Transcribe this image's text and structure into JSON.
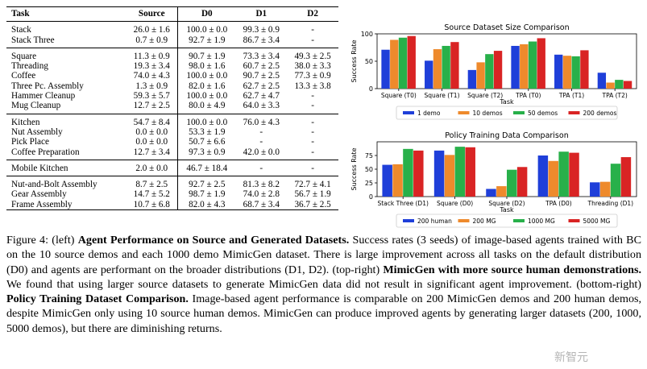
{
  "table": {
    "headers": [
      "Task",
      "Source",
      "D0",
      "D1",
      "D2"
    ],
    "groups": [
      [
        [
          "Stack",
          "26.0 ± 1.6",
          "100.0 ± 0.0",
          "99.3 ± 0.9",
          "-"
        ],
        [
          "Stack Three",
          "0.7 ± 0.9",
          "92.7 ± 1.9",
          "86.7 ± 3.4",
          "-"
        ]
      ],
      [
        [
          "Square",
          "11.3 ± 0.9",
          "90.7 ± 1.9",
          "73.3 ± 3.4",
          "49.3 ± 2.5"
        ],
        [
          "Threading",
          "19.3 ± 3.4",
          "98.0 ± 1.6",
          "60.7 ± 2.5",
          "38.0 ± 3.3"
        ],
        [
          "Coffee",
          "74.0 ± 4.3",
          "100.0 ± 0.0",
          "90.7 ± 2.5",
          "77.3 ± 0.9"
        ],
        [
          "Three Pc. Assembly",
          "1.3 ± 0.9",
          "82.0 ± 1.6",
          "62.7 ± 2.5",
          "13.3 ± 3.8"
        ],
        [
          "Hammer Cleanup",
          "59.3 ± 5.7",
          "100.0 ± 0.0",
          "62.7 ± 4.7",
          "-"
        ],
        [
          "Mug Cleanup",
          "12.7 ± 2.5",
          "80.0 ± 4.9",
          "64.0 ± 3.3",
          "-"
        ]
      ],
      [
        [
          "Kitchen",
          "54.7 ± 8.4",
          "100.0 ± 0.0",
          "76.0 ± 4.3",
          "-"
        ],
        [
          "Nut Assembly",
          "0.0 ± 0.0",
          "53.3 ± 1.9",
          "-",
          "-"
        ],
        [
          "Pick Place",
          "0.0 ± 0.0",
          "50.7 ± 6.6",
          "-",
          "-"
        ],
        [
          "Coffee Preparation",
          "12.7 ± 3.4",
          "97.3 ± 0.9",
          "42.0 ± 0.0",
          "-"
        ]
      ],
      [
        [
          "Mobile Kitchen",
          "2.0 ± 0.0",
          "46.7 ± 18.4",
          "-",
          "-"
        ]
      ],
      [
        [
          "Nut-and-Bolt Assembly",
          "8.7 ± 2.5",
          "92.7 ± 2.5",
          "81.3 ± 8.2",
          "72.7 ± 4.1"
        ],
        [
          "Gear Assembly",
          "14.7 ± 5.2",
          "98.7 ± 1.9",
          "74.0 ± 2.8",
          "56.7 ± 1.9"
        ],
        [
          "Frame Assembly",
          "10.7 ± 6.8",
          "82.0 ± 4.3",
          "68.7 ± 3.4",
          "36.7 ± 2.5"
        ]
      ]
    ]
  },
  "chart_data": [
    {
      "type": "bar",
      "title": "Source Dataset Size Comparison",
      "xlabel": "Task",
      "ylabel": "Success Rate",
      "ylim": [
        0,
        100
      ],
      "yticks": [
        0,
        50,
        100
      ],
      "grid": false,
      "legend_placement": "bottom",
      "categories": [
        "Square (T0)",
        "Square (T1)",
        "Square (T2)",
        "TPA (T0)",
        "TPA (T1)",
        "TPA (T2)"
      ],
      "series": [
        {
          "name": "1 demo",
          "color": "#1f3fd9",
          "values": [
            71,
            51,
            34,
            78,
            62,
            29
          ]
        },
        {
          "name": "10 demos",
          "color": "#ee8a2c",
          "values": [
            89,
            72,
            48,
            81,
            60,
            11
          ]
        },
        {
          "name": "50 demos",
          "color": "#28b04a",
          "values": [
            93,
            78,
            63,
            86,
            59,
            16
          ]
        },
        {
          "name": "200 demos",
          "color": "#d92424",
          "values": [
            96,
            85,
            69,
            92,
            70,
            14
          ]
        }
      ]
    },
    {
      "type": "bar",
      "title": "Policy Training Data Comparison",
      "xlabel": "Task",
      "ylabel": "Success Rate",
      "ylim": [
        0,
        100
      ],
      "yticks": [
        0,
        25,
        50,
        75
      ],
      "grid": false,
      "legend_placement": "bottom",
      "categories": [
        "Stack Three (D1)",
        "Square (D0)",
        "Square (D2)",
        "TPA (D0)",
        "Threading (D1)"
      ],
      "series": [
        {
          "name": "200 human",
          "color": "#1f3fd9",
          "values": [
            58,
            84,
            14,
            75,
            26
          ]
        },
        {
          "name": "200 MG",
          "color": "#ee8a2c",
          "values": [
            59,
            76,
            19,
            65,
            27
          ]
        },
        {
          "name": "1000 MG",
          "color": "#28b04a",
          "values": [
            87,
            91,
            49,
            82,
            60
          ]
        },
        {
          "name": "5000 MG",
          "color": "#d92424",
          "values": [
            84,
            90,
            54,
            80,
            72
          ]
        }
      ]
    }
  ],
  "caption": {
    "fig_label": "Figure 4:",
    "seg1": "(left)",
    "bold1": "Agent Performance on Source and Generated Datasets.",
    "seg2": "Success rates (3 seeds) of image-based agents trained with BC on the 10 source demos and each 1000 demo MimicGen dataset. There is large improvement across all tasks on the default distribution (D0) and agents are performant on the broader distributions (D1, D2). (top-right)",
    "bold2": "MimicGen with more source human demonstrations.",
    "seg3": "We found that using larger source datasets to generate MimicGen data did not result in significant agent improvement. (bottom-right)",
    "bold3": "Policy Training Dataset Comparison.",
    "seg4": "Image-based agent performance is comparable on 200 MimicGen demos and 200 human demos, despite MimicGen only using 10 source human demos. MimicGen can produce improved agents by generating larger datasets (200, 1000, 5000 demos), but there are diminishing returns."
  },
  "watermark": "新智元"
}
